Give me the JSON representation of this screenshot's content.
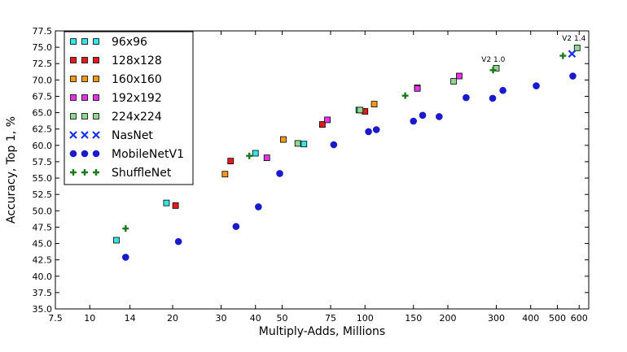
{
  "chart_data": {
    "type": "scatter",
    "xscale": "log",
    "xlim": [
      7.5,
      650
    ],
    "ylim": [
      35.0,
      77.5
    ],
    "xticks": [
      7.5,
      10,
      14,
      20,
      30,
      40,
      50,
      75,
      100,
      150,
      200,
      300,
      400,
      500,
      600
    ],
    "yticks": [
      35.0,
      37.5,
      40.0,
      42.5,
      45.0,
      47.5,
      50.0,
      52.5,
      55.0,
      57.5,
      60.0,
      62.5,
      65.0,
      67.5,
      70.0,
      72.5,
      75.0,
      77.5
    ],
    "xlabel": "Multiply-Adds, Millions",
    "ylabel": "Accuracy, Top 1, %",
    "grid": false,
    "legend_position": "top-left",
    "series": [
      {
        "name": "96x96",
        "marker": "square",
        "color": "#33e6e6",
        "points": [
          [
            12.5,
            45.5
          ],
          [
            19,
            51.2
          ],
          [
            40,
            58.8
          ],
          [
            60,
            60.2
          ],
          [
            95,
            65.4
          ]
        ]
      },
      {
        "name": "128x128",
        "marker": "square",
        "color": "#e61a1a",
        "points": [
          [
            20.5,
            50.8
          ],
          [
            32.5,
            57.6
          ],
          [
            70,
            63.2
          ],
          [
            100,
            65.2
          ],
          [
            155,
            68.8
          ]
        ]
      },
      {
        "name": "160x160",
        "marker": "square",
        "color": "#f29a1a",
        "points": [
          [
            31,
            55.6
          ],
          [
            50.5,
            60.9
          ],
          [
            108,
            66.3
          ]
        ]
      },
      {
        "name": "192x192",
        "marker": "square",
        "color": "#e633e6",
        "points": [
          [
            44,
            58.1
          ],
          [
            73,
            63.9
          ],
          [
            155,
            68.7
          ],
          [
            220,
            70.6
          ]
        ]
      },
      {
        "name": "224x224",
        "marker": "square",
        "color": "#8fd68f",
        "points": [
          [
            57,
            60.3
          ],
          [
            96,
            65.4
          ],
          [
            210,
            69.8
          ],
          [
            300,
            71.8
          ],
          [
            590,
            74.9
          ]
        ]
      },
      {
        "name": "NasNet",
        "marker": "x",
        "color": "#1a33e6",
        "points": [
          [
            565,
            74.0
          ]
        ]
      },
      {
        "name": "MobileNetV1",
        "marker": "circle",
        "color": "#1a1acc",
        "points": [
          [
            13.5,
            42.9
          ],
          [
            21,
            45.3
          ],
          [
            34,
            47.6
          ],
          [
            41,
            50.6
          ],
          [
            49,
            55.7
          ],
          [
            77,
            60.1
          ],
          [
            103,
            62.1
          ],
          [
            110,
            62.4
          ],
          [
            150,
            63.7
          ],
          [
            162,
            64.6
          ],
          [
            186,
            64.4
          ],
          [
            233,
            67.3
          ],
          [
            291,
            67.2
          ],
          [
            317,
            68.4
          ],
          [
            419,
            69.1
          ],
          [
            569,
            70.6
          ]
        ]
      },
      {
        "name": "ShuffleNet",
        "marker": "plus",
        "color": "#1a7a1a",
        "points": [
          [
            13.5,
            47.3
          ],
          [
            38,
            58.4
          ],
          [
            140,
            67.6
          ],
          [
            292,
            71.5
          ],
          [
            524,
            73.7
          ]
        ]
      }
    ],
    "annotations": [
      {
        "text": "V2 1.0",
        "x": 265,
        "y": 72.8
      },
      {
        "text": "V2 1.4",
        "x": 520,
        "y": 76.0
      }
    ]
  }
}
